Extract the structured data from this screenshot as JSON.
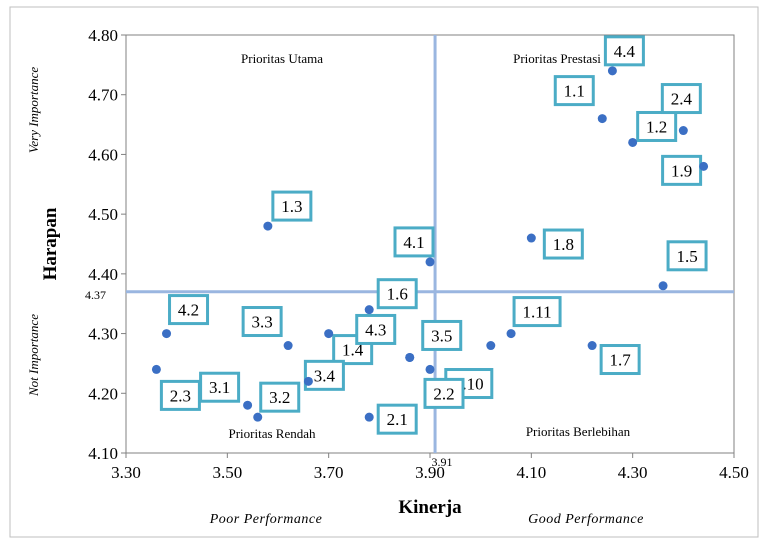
{
  "chart_data": {
    "type": "scatter",
    "xlabel": "Kinerja",
    "ylabel": "Harapan",
    "xlim": [
      3.3,
      4.5
    ],
    "ylim": [
      4.1,
      4.8
    ],
    "x_ticks": [
      "3.30",
      "3.50",
      "3.70",
      "3.90",
      "4.10",
      "4.30",
      "4.50"
    ],
    "y_ticks": [
      "4.10",
      "4.20",
      "4.30",
      "4.40",
      "4.50",
      "4.60",
      "4.70",
      "4.80"
    ],
    "grid": false,
    "divider_x": 3.91,
    "divider_y": 4.37,
    "divider_x_label": "3.91",
    "divider_y_label": "4.37",
    "quadrant_labels": {
      "top_left": "Prioritas Utama",
      "top_right": "Prioritas Prestasi",
      "bottom_left": "Prioritas Rendah",
      "bottom_right": "Prioritas Berlebihan"
    },
    "side_labels": {
      "upper": "Very Importance",
      "lower": "Not Importance"
    },
    "bottom_labels": {
      "left": "Poor Performance",
      "right": "Good Performance"
    },
    "colors": {
      "point": "#3b6fc4",
      "divider": "#9ab6e0",
      "label_border": "#4bacc6"
    },
    "points": [
      {
        "label": "1.1",
        "x": 4.24,
        "y": 4.66
      },
      {
        "label": "1.2",
        "x": 4.3,
        "y": 4.62
      },
      {
        "label": "1.3",
        "x": 3.58,
        "y": 4.48
      },
      {
        "label": "1.4",
        "x": 3.7,
        "y": 4.3
      },
      {
        "label": "1.5",
        "x": 4.36,
        "y": 4.38
      },
      {
        "label": "1.6",
        "x": 3.78,
        "y": 4.34
      },
      {
        "label": "1.7",
        "x": 4.22,
        "y": 4.28
      },
      {
        "label": "1.8",
        "x": 4.1,
        "y": 4.46
      },
      {
        "label": "1.9",
        "x": 4.44,
        "y": 4.58
      },
      {
        "label": "1.10",
        "x": 4.02,
        "y": 4.28
      },
      {
        "label": "1.11",
        "x": 4.06,
        "y": 4.3
      },
      {
        "label": "2.1",
        "x": 3.78,
        "y": 4.16
      },
      {
        "label": "2.2",
        "x": 3.9,
        "y": 4.24
      },
      {
        "label": "2.3",
        "x": 3.36,
        "y": 4.24
      },
      {
        "label": "2.4",
        "x": 4.4,
        "y": 4.64
      },
      {
        "label": "3.1",
        "x": 3.54,
        "y": 4.18
      },
      {
        "label": "3.2",
        "x": 3.56,
        "y": 4.16
      },
      {
        "label": "3.3",
        "x": 3.62,
        "y": 4.28
      },
      {
        "label": "3.4",
        "x": 3.66,
        "y": 4.22
      },
      {
        "label": "3.5",
        "x": 3.86,
        "y": 4.26
      },
      {
        "label": "4.1",
        "x": 3.9,
        "y": 4.42
      },
      {
        "label": "4.2",
        "x": 3.38,
        "y": 4.3
      },
      {
        "label": "4.3",
        "x": 3.86,
        "y": 4.26
      },
      {
        "label": "4.4",
        "x": 4.26,
        "y": 4.74
      }
    ]
  }
}
